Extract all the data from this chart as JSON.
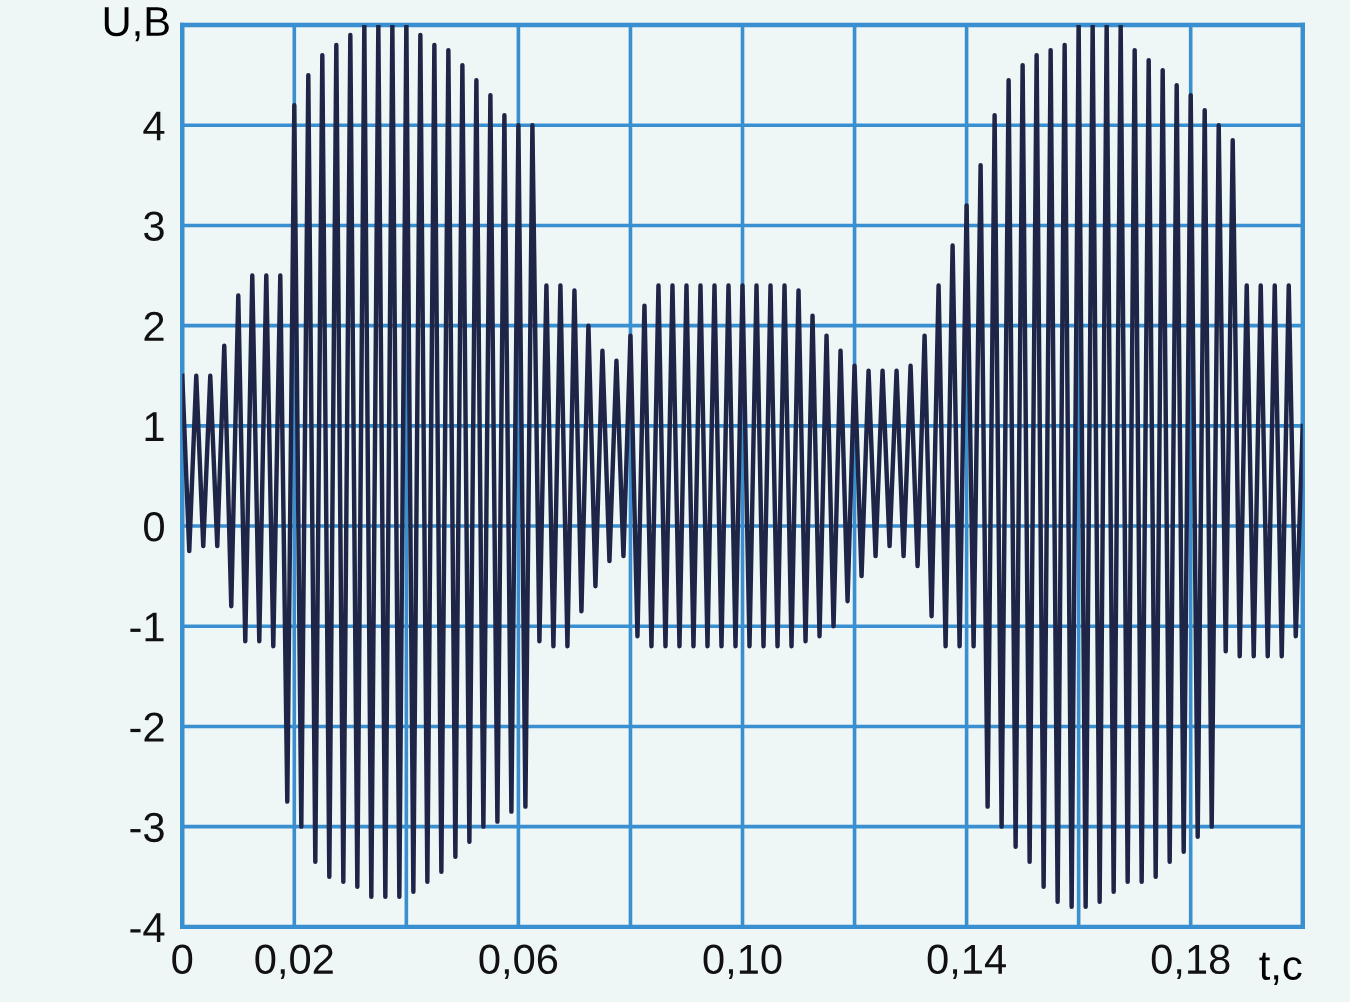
{
  "chart_data": {
    "type": "line",
    "xlabel": "t,c",
    "ylabel": "U,B",
    "xlim": [
      0,
      0.2
    ],
    "ylim": [
      -4,
      5
    ],
    "xticks": [
      0,
      {
        "value": 0.02,
        "label": "0,02"
      },
      {
        "value": 0.04,
        "label": null
      },
      {
        "value": 0.06,
        "label": "0,06"
      },
      {
        "value": 0.08,
        "label": null
      },
      {
        "value": 0.1,
        "label": "0,10"
      },
      {
        "value": 0.12,
        "label": null
      },
      {
        "value": 0.14,
        "label": "0,14"
      },
      {
        "value": 0.16,
        "label": null
      },
      {
        "value": 0.18,
        "label": "0,18"
      }
    ],
    "yticks": [
      -4,
      -3,
      -2,
      -1,
      0,
      1,
      2,
      3,
      4,
      {
        "value": 5,
        "label": null
      }
    ],
    "grid": true,
    "marker": "none",
    "line_style": "solid",
    "series": [
      {
        "color": "#1f2547",
        "x": [
          0,
          0.00125,
          0.0025,
          0.00375,
          0.005,
          0.00625,
          0.0075,
          0.00875,
          0.01,
          0.01125,
          0.0125,
          0.01375,
          0.015,
          0.01625,
          0.0175,
          0.01875,
          0.02,
          0.02125,
          0.0225,
          0.02375,
          0.025,
          0.02625,
          0.0275,
          0.02875,
          0.03,
          0.03125,
          0.0325,
          0.03375,
          0.035,
          0.03625,
          0.0375,
          0.03875,
          0.04,
          0.04125,
          0.0425,
          0.04375,
          0.045,
          0.04625,
          0.0475,
          0.04875,
          0.05,
          0.05125,
          0.0525,
          0.05375,
          0.055,
          0.05625,
          0.0575,
          0.05875,
          0.06,
          0.06125,
          0.0625,
          0.06375,
          0.065,
          0.06625,
          0.0675,
          0.06875,
          0.07,
          0.07125,
          0.0725,
          0.07375,
          0.075,
          0.07625,
          0.0775,
          0.07875,
          0.08,
          0.08125,
          0.0825,
          0.08375,
          0.085,
          0.08625,
          0.0875,
          0.08875,
          0.09,
          0.09125,
          0.0925,
          0.09375,
          0.095,
          0.09625,
          0.0975,
          0.09875,
          0.1,
          0.10125,
          0.1025,
          0.10375,
          0.105,
          0.10625,
          0.1075,
          0.10875,
          0.11,
          0.11125,
          0.1125,
          0.11375,
          0.115,
          0.11625,
          0.1175,
          0.11875,
          0.12,
          0.12125,
          0.1225,
          0.12375,
          0.125,
          0.12625,
          0.1275,
          0.12875,
          0.13,
          0.13125,
          0.1325,
          0.13375,
          0.135,
          0.13625,
          0.1375,
          0.13875,
          0.14,
          0.14125,
          0.1425,
          0.14375,
          0.145,
          0.14625,
          0.1475,
          0.14875,
          0.15,
          0.15125,
          0.1525,
          0.15375,
          0.155,
          0.15625,
          0.1575,
          0.15875,
          0.16,
          0.16125,
          0.1625,
          0.16375,
          0.165,
          0.16625,
          0.1675,
          0.16875,
          0.17,
          0.17125,
          0.1725,
          0.17375,
          0.175,
          0.17625,
          0.1775,
          0.17875,
          0.18,
          0.18125,
          0.1825,
          0.18375,
          0.185,
          0.18625,
          0.1875,
          0.18875,
          0.19,
          0.19125,
          0.1925,
          0.19375,
          0.195,
          0.19625,
          0.1975,
          0.19875,
          0.2
        ],
        "values": [
          1.5,
          -0.25,
          1.5,
          -0.2,
          1.5,
          -0.2,
          1.8,
          -0.8,
          2.3,
          -1.15,
          2.5,
          -1.15,
          2.5,
          -1.2,
          2.5,
          -2.75,
          4.2,
          -3.0,
          4.5,
          -3.35,
          4.7,
          -3.5,
          4.8,
          -3.55,
          4.9,
          -3.6,
          5.0,
          -3.7,
          5.0,
          -3.7,
          5.0,
          -3.7,
          5.0,
          -3.65,
          4.9,
          -3.55,
          4.8,
          -3.45,
          4.75,
          -3.3,
          4.6,
          -3.15,
          4.45,
          -3.0,
          4.3,
          -2.95,
          4.1,
          -2.85,
          4.0,
          -2.8,
          4.0,
          -1.15,
          2.4,
          -1.2,
          2.4,
          -1.2,
          2.35,
          -0.85,
          2.0,
          -0.6,
          1.75,
          -0.35,
          1.65,
          -0.3,
          1.9,
          -1.1,
          2.2,
          -1.2,
          2.4,
          -1.2,
          2.4,
          -1.2,
          2.4,
          -1.2,
          2.4,
          -1.2,
          2.4,
          -1.2,
          2.4,
          -1.2,
          2.4,
          -1.2,
          2.4,
          -1.2,
          2.4,
          -1.2,
          2.4,
          -1.2,
          2.35,
          -1.15,
          2.1,
          -1.1,
          1.9,
          -1.0,
          1.75,
          -0.75,
          1.6,
          -0.5,
          1.55,
          -0.3,
          1.55,
          -0.2,
          1.55,
          -0.3,
          1.6,
          -0.4,
          1.9,
          -0.9,
          2.4,
          -1.2,
          2.8,
          -1.2,
          3.2,
          -1.2,
          3.6,
          -2.8,
          4.1,
          -3.0,
          4.45,
          -3.2,
          4.6,
          -3.35,
          4.7,
          -3.6,
          4.75,
          -3.75,
          4.8,
          -3.8,
          5.0,
          -3.8,
          5.0,
          -3.75,
          5.0,
          -3.65,
          5.0,
          -3.55,
          4.75,
          -3.55,
          4.65,
          -3.5,
          4.55,
          -3.35,
          4.4,
          -3.25,
          4.3,
          -3.1,
          4.15,
          -3.0,
          4.0,
          -1.25,
          3.85,
          -1.3,
          2.4,
          -1.3,
          2.4,
          -1.3,
          2.4,
          -1.3,
          2.4,
          -1.1,
          1.0
        ]
      }
    ]
  }
}
